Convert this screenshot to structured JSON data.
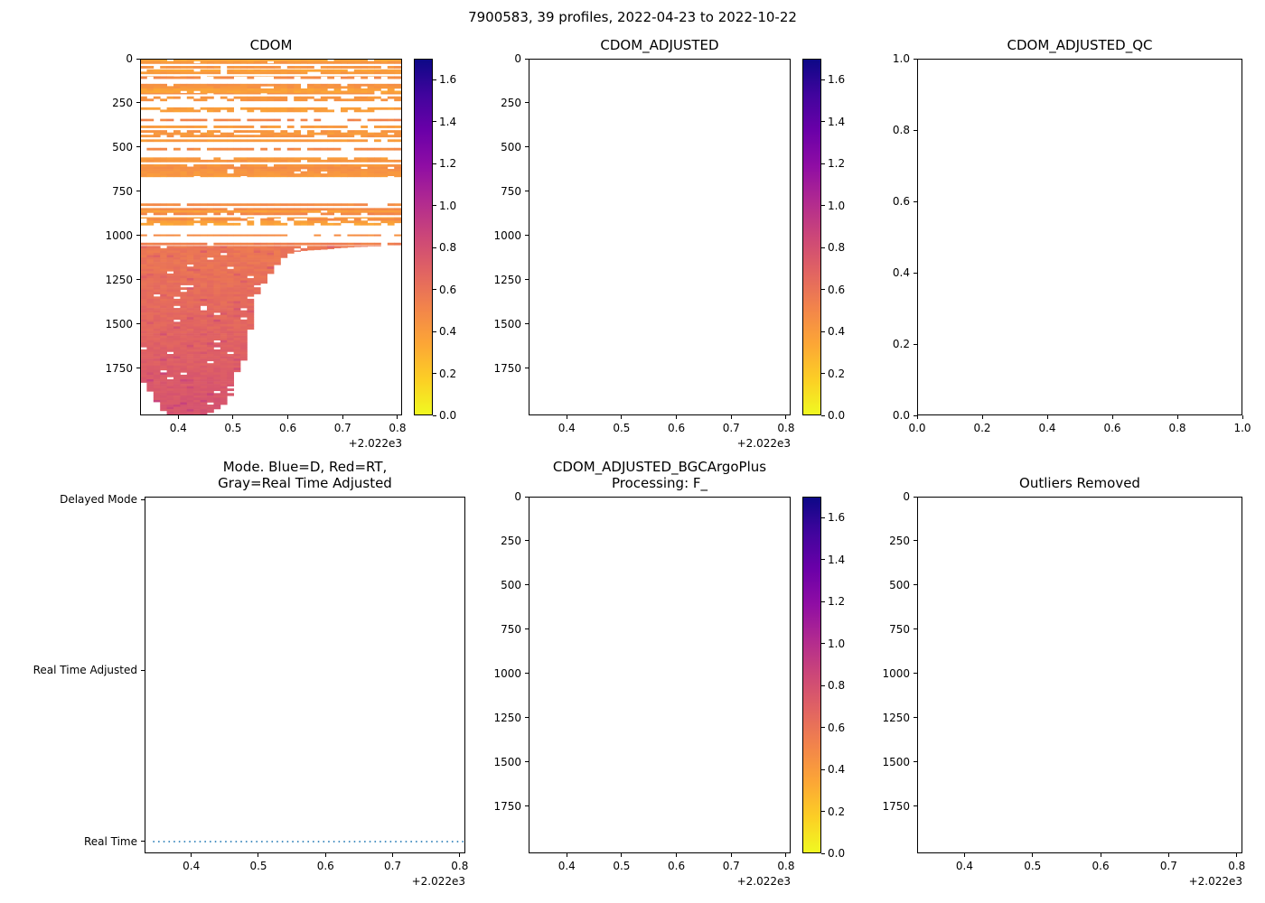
{
  "figure": {
    "title": "7900583, 39 profiles, 2022-04-23 to 2022-10-22",
    "background": "#ffffff"
  },
  "colormap": {
    "name": "plasma_r",
    "vmin": 0.0,
    "vmax": 1.7,
    "plasma_stops": [
      "#0d0887",
      "#41049d",
      "#6a00a8",
      "#8f0da4",
      "#b12a90",
      "#cc4778",
      "#e16462",
      "#f2844b",
      "#fca636",
      "#fcce25",
      "#f0f921"
    ],
    "colorbar_tick_values": [
      0.0,
      0.2,
      0.4,
      0.6,
      0.8,
      1.0,
      1.2,
      1.4,
      1.6
    ],
    "colorbar_tick_labels": [
      "0.0",
      "0.2",
      "0.4",
      "0.6",
      "0.8",
      "1.0",
      "1.2",
      "1.4",
      "1.6"
    ]
  },
  "chart_data": [
    {
      "type": "heatmap",
      "title_lines": [
        "CDOM"
      ],
      "x_offset_label": "+2.022e3",
      "xlim": [
        2022.3304,
        2022.8083
      ],
      "xtick_values": [
        2022.4,
        2022.5,
        2022.6,
        2022.7,
        2022.8
      ],
      "xtick_labels": [
        "0.4",
        "0.5",
        "0.6",
        "0.7",
        "0.8"
      ],
      "ylim": [
        0,
        2016
      ],
      "ytick_values": [
        0,
        250,
        500,
        750,
        1000,
        1250,
        1500,
        1750
      ],
      "ytick_labels": [
        "0",
        "250",
        "500",
        "750",
        "1000",
        "1250",
        "1500",
        "1750"
      ],
      "has_colorbar": true,
      "n_profiles": 39,
      "time_start": 2022.3304,
      "time_end": 2022.806,
      "shallow_bands": [
        {
          "depth_min": 0,
          "depth_max": 28,
          "value": 0.4,
          "density": 0.95
        },
        {
          "depth_min": 28,
          "depth_max": 60,
          "value": 0.47,
          "density": 0.55
        },
        {
          "depth_min": 60,
          "depth_max": 100,
          "value": 0.4,
          "density": 0.88
        },
        {
          "depth_min": 100,
          "depth_max": 142,
          "value": 0.45,
          "density": 0.42
        },
        {
          "depth_min": 142,
          "depth_max": 200,
          "value": 0.43,
          "density": 0.88
        },
        {
          "depth_min": 200,
          "depth_max": 262,
          "value": 0.47,
          "density": 0.14
        },
        {
          "depth_min": 262,
          "depth_max": 352,
          "value": 0.45,
          "density": 0.3
        },
        {
          "depth_min": 352,
          "depth_max": 478,
          "value": 0.42,
          "density": 0.62
        },
        {
          "depth_min": 478,
          "depth_max": 558,
          "value": 0.45,
          "density": 0.32
        },
        {
          "depth_min": 558,
          "depth_max": 668,
          "value": 0.43,
          "density": 0.85
        },
        {
          "depth_min": 668,
          "depth_max": 818,
          "value": 0.44,
          "density": 0.26
        },
        {
          "depth_min": 818,
          "depth_max": 902,
          "value": 0.44,
          "density": 0.8
        },
        {
          "depth_min": 902,
          "depth_max": 1002,
          "value": 0.42,
          "density": 0.3
        },
        {
          "depth_min": 1002,
          "depth_max": 1040,
          "value": 0.5,
          "density": 0.12
        },
        {
          "depth_min": 1040,
          "depth_max": 1058,
          "value": 0.55,
          "density": 0.85
        }
      ],
      "deep_top": 1058,
      "deep_value_surface": 0.58,
      "deep_value_bottom": 0.78,
      "profile_max_depth": [
        1830,
        1880,
        1940,
        1990,
        2016,
        2016,
        2016,
        2016,
        2016,
        2016,
        2000,
        1980,
        1955,
        1905,
        1770,
        1705,
        1530,
        1330,
        1270,
        1215,
        1165,
        1125,
        1100,
        1090,
        1085,
        1082,
        1080,
        1078,
        1075,
        1070,
        1068,
        1065,
        1063,
        1062,
        1060,
        1060,
        1058,
        1058,
        1058
      ]
    },
    {
      "type": "heatmap",
      "empty": true,
      "title_lines": [
        "CDOM_ADJUSTED"
      ],
      "x_offset_label": "+2.022e3",
      "xlim": [
        2022.3304,
        2022.8083
      ],
      "xtick_values": [
        2022.4,
        2022.5,
        2022.6,
        2022.7,
        2022.8
      ],
      "xtick_labels": [
        "0.4",
        "0.5",
        "0.6",
        "0.7",
        "0.8"
      ],
      "ylim": [
        0,
        2016
      ],
      "ytick_values": [
        0,
        250,
        500,
        750,
        1000,
        1250,
        1500,
        1750
      ],
      "ytick_labels": [
        "0",
        "250",
        "500",
        "750",
        "1000",
        "1250",
        "1500",
        "1750"
      ],
      "has_colorbar": true
    },
    {
      "type": "scatter",
      "empty": true,
      "title_lines": [
        "CDOM_ADJUSTED_QC"
      ],
      "xlim": [
        0,
        1
      ],
      "xtick_values": [
        0,
        0.2,
        0.4,
        0.6,
        0.8,
        1.0
      ],
      "xtick_labels": [
        "0.0",
        "0.2",
        "0.4",
        "0.6",
        "0.8",
        "1.0"
      ],
      "ylim": [
        0,
        1
      ],
      "ytick_values": [
        0,
        0.2,
        0.4,
        0.6,
        0.8,
        1.0
      ],
      "ytick_labels": [
        "0.0",
        "0.2",
        "0.4",
        "0.6",
        "0.8",
        "1.0"
      ],
      "has_colorbar": false
    },
    {
      "type": "line",
      "title_lines": [
        "Mode. Blue=D, Red=RT,",
        "Gray=Real Time Adjusted"
      ],
      "x_offset_label": "+2.022e3",
      "xlim": [
        2022.3304,
        2022.8083
      ],
      "xtick_values": [
        2022.4,
        2022.5,
        2022.6,
        2022.7,
        2022.8
      ],
      "xtick_labels": [
        "0.4",
        "0.5",
        "0.6",
        "0.7",
        "0.8"
      ],
      "ytick_labels": [
        "Delayed Mode",
        "Real Time Adjusted",
        "Real Time"
      ],
      "series": [
        {
          "name": "Real Time",
          "color": "#1f77b4",
          "linestyle": "dotted",
          "y_category": "Real Time",
          "x_start": 2022.344,
          "x_end": 2022.8057
        }
      ],
      "has_colorbar": false
    },
    {
      "type": "heatmap",
      "empty": true,
      "title_lines": [
        "CDOM_ADJUSTED_BGCArgoPlus",
        "Processing: F_"
      ],
      "x_offset_label": "+2.022e3",
      "xlim": [
        2022.3304,
        2022.8083
      ],
      "xtick_values": [
        2022.4,
        2022.5,
        2022.6,
        2022.7,
        2022.8
      ],
      "xtick_labels": [
        "0.4",
        "0.5",
        "0.6",
        "0.7",
        "0.8"
      ],
      "ylim": [
        0,
        2016
      ],
      "ytick_values": [
        0,
        250,
        500,
        750,
        1000,
        1250,
        1500,
        1750
      ],
      "ytick_labels": [
        "0",
        "250",
        "500",
        "750",
        "1000",
        "1250",
        "1500",
        "1750"
      ],
      "has_colorbar": true
    },
    {
      "type": "scatter",
      "empty": true,
      "title_lines": [
        "Outliers Removed"
      ],
      "x_offset_label": "+2.022e3",
      "xlim": [
        2022.3304,
        2022.8083
      ],
      "xtick_values": [
        2022.4,
        2022.5,
        2022.6,
        2022.7,
        2022.8
      ],
      "xtick_labels": [
        "0.4",
        "0.5",
        "0.6",
        "0.7",
        "0.8"
      ],
      "ylim": [
        0,
        2016
      ],
      "ytick_values": [
        0,
        250,
        500,
        750,
        1000,
        1250,
        1500,
        1750
      ],
      "ytick_labels": [
        "0",
        "250",
        "500",
        "750",
        "1000",
        "1250",
        "1500",
        "1750"
      ],
      "has_colorbar": false
    }
  ]
}
